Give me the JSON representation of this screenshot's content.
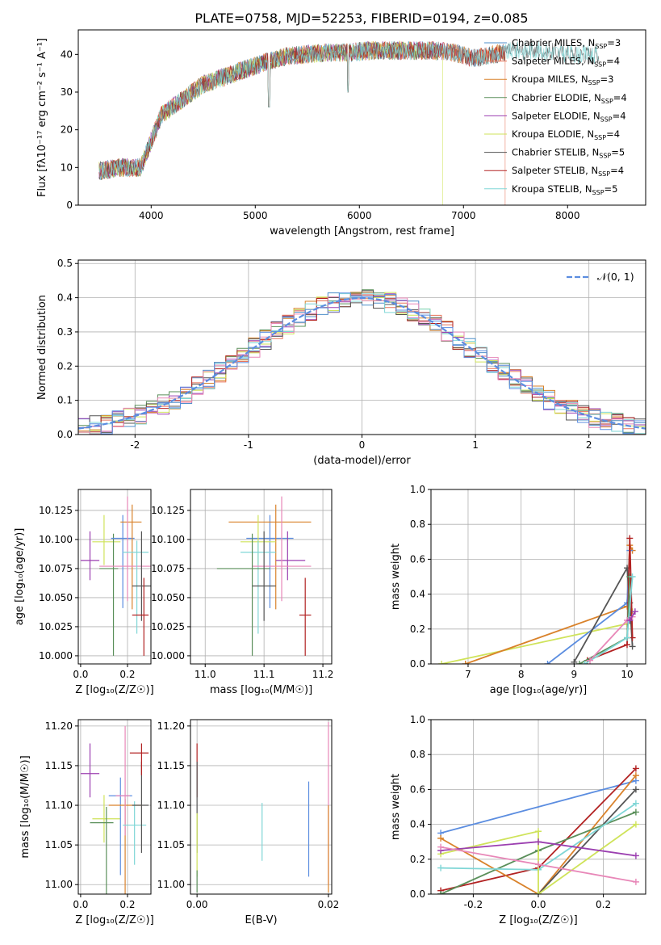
{
  "figure_title": "PLATE=0758, MJD=52253, FIBERID=0194, z=0.085",
  "colors": {
    "Chabrier MILES": "#4e8fc9",
    "Salpeter MILES": "#e8745a",
    "Kroupa MILES": "#d9822b",
    "Chabrier ELODIE": "#5a8f5a",
    "Salpeter ELODIE": "#9b3fb0",
    "Kroupa ELODIE": "#cfe35a",
    "Chabrier STELIB": "#555555",
    "Salpeter STELIB": "#b22222",
    "Kroupa STELIB": "#7fd6d6",
    "extra_blue": "#5b8de0",
    "extra_pink": "#e887b8",
    "normal_curve": "#5b8de0"
  },
  "chart_data": [
    {
      "id": "spectrum",
      "type": "line",
      "xlabel": "wavelength [Angstrom, rest frame]",
      "ylabel": "Flux [fλ10⁻¹⁷ erg cm⁻² s⁻¹ A⁻¹]",
      "xlim": [
        3300,
        8750
      ],
      "ylim": [
        0,
        46.5
      ],
      "xticks": [
        4000,
        5000,
        6000,
        7000,
        8000
      ],
      "yticks": [
        0,
        10,
        20,
        30,
        40
      ],
      "legend_position": "top-right",
      "legend": [
        {
          "name": "Chabrier MILES, N",
          "sub": "SSP",
          "val": "=3"
        },
        {
          "name": "Salpeter MILES, N",
          "sub": "SSP",
          "val": "=4"
        },
        {
          "name": "Kroupa MILES, N",
          "sub": "SSP",
          "val": "=3"
        },
        {
          "name": "Chabrier ELODIE, N",
          "sub": "SSP",
          "val": "=4"
        },
        {
          "name": "Salpeter ELODIE, N",
          "sub": "SSP",
          "val": "=4"
        },
        {
          "name": "Kroupa ELODIE, N",
          "sub": "SSP",
          "val": "=4"
        },
        {
          "name": "Chabrier STELIB, N",
          "sub": "SSP",
          "val": "=5"
        },
        {
          "name": "Salpeter STELIB, N",
          "sub": "SSP",
          "val": "=4"
        },
        {
          "name": "Kroupa STELIB, N",
          "sub": "SSP",
          "val": "=5"
        }
      ],
      "continuum": [
        [
          3500,
          9
        ],
        [
          3700,
          10
        ],
        [
          3900,
          10
        ],
        [
          4000,
          17
        ],
        [
          4100,
          24
        ],
        [
          4300,
          28
        ],
        [
          4500,
          32
        ],
        [
          4700,
          34
        ],
        [
          4900,
          36
        ],
        [
          5100,
          38
        ],
        [
          5300,
          39.5
        ],
        [
          5500,
          40
        ],
        [
          5700,
          40.5
        ],
        [
          5900,
          40.5
        ],
        [
          6100,
          41
        ],
        [
          6300,
          41
        ],
        [
          6500,
          41
        ],
        [
          6700,
          41
        ],
        [
          6900,
          40.5
        ],
        [
          7100,
          39
        ],
        [
          7300,
          40
        ],
        [
          7500,
          41
        ],
        [
          7700,
          41
        ],
        [
          7900,
          40.5
        ],
        [
          8100,
          40
        ],
        [
          8300,
          40
        ]
      ]
    },
    {
      "id": "residuals",
      "type": "line",
      "xlabel": "(data-model)/error",
      "ylabel": "Normed distribution",
      "xlim": [
        -2.5,
        2.5
      ],
      "ylim": [
        0,
        0.51
      ],
      "xticks": [
        -2,
        -1,
        0,
        1,
        2
      ],
      "yticks": [
        0.0,
        0.1,
        0.2,
        0.3,
        0.4,
        0.5
      ],
      "legend_position": "top-right",
      "normal_label": "𝒩(0, 1)",
      "grid": true
    },
    {
      "id": "age_vs_Z",
      "type": "scatter",
      "xlabel": "Z [log₁₀(Z/Z☉)]",
      "ylabel": "age  [log₁₀(age/yr)]",
      "xlim": [
        -0.01,
        0.3
      ],
      "ylim": [
        9.993,
        10.143
      ],
      "xticks": [
        0.0,
        0.2
      ],
      "yticks": [
        10.0,
        10.025,
        10.05,
        10.075,
        10.1,
        10.125
      ],
      "grid": true,
      "points": [
        {
          "x": 0.04,
          "y": 10.082,
          "xerr": [
            0.04,
            0.04
          ],
          "yerr": [
            0.017,
            0.025
          ],
          "color": "Salpeter ELODIE"
        },
        {
          "x": 0.1,
          "y": 10.098,
          "xerr": [
            0.05,
            0.07
          ],
          "yerr": [
            0.02,
            0.023
          ],
          "color": "Kroupa ELODIE"
        },
        {
          "x": 0.14,
          "y": 10.075,
          "xerr": [
            0.06,
            0.02
          ],
          "yerr": [
            0.075,
            0.03
          ],
          "color": "Chabrier ELODIE"
        },
        {
          "x": 0.18,
          "y": 10.101,
          "xerr": [
            0.05,
            0.05
          ],
          "yerr": [
            0.06,
            0.02
          ],
          "color": "extra_blue"
        },
        {
          "x": 0.22,
          "y": 10.115,
          "xerr": [
            0.05,
            0.04
          ],
          "yerr": [
            0.075,
            0.015
          ],
          "color": "Kroupa MILES"
        },
        {
          "x": 0.2,
          "y": 10.077,
          "xerr": [
            0.12,
            0.1
          ],
          "yerr": [
            0.03,
            0.06
          ],
          "color": "extra_pink"
        },
        {
          "x": 0.24,
          "y": 10.089,
          "xerr": [
            0.06,
            0.05
          ],
          "yerr": [
            0.07,
            0.01
          ],
          "color": "Kroupa STELIB"
        },
        {
          "x": 0.26,
          "y": 10.06,
          "xerr": [
            0.04,
            0.04
          ],
          "yerr": [
            0.03,
            0.047
          ],
          "color": "Chabrier STELIB"
        },
        {
          "x": 0.27,
          "y": 10.035,
          "xerr": [
            0.05,
            0.02
          ],
          "yerr": [
            0.035,
            0.032
          ],
          "color": "Salpeter STELIB"
        }
      ]
    },
    {
      "id": "age_vs_mass",
      "type": "scatter",
      "xlabel": "mass [log₁₀(M/M☉)]",
      "xlim": [
        10.975,
        11.215
      ],
      "ylim": [
        9.993,
        10.143
      ],
      "xticks": [
        11.0,
        11.1,
        11.2
      ],
      "yticks": [
        10.0,
        10.025,
        10.05,
        10.075,
        10.1,
        10.125
      ],
      "grid": true,
      "points": [
        {
          "x": 11.11,
          "y": 10.101,
          "xerr": [
            0.04,
            0.04
          ],
          "yerr": [
            0.06,
            0.02
          ],
          "color": "extra_blue"
        },
        {
          "x": 11.12,
          "y": 10.115,
          "xerr": [
            0.08,
            0.06
          ],
          "yerr": [
            0.075,
            0.015
          ],
          "color": "Kroupa MILES"
        },
        {
          "x": 11.09,
          "y": 10.098,
          "xerr": [
            0.03,
            0.03
          ],
          "yerr": [
            0.02,
            0.023
          ],
          "color": "Kroupa ELODIE"
        },
        {
          "x": 11.09,
          "y": 10.089,
          "xerr": [
            0.03,
            0.03
          ],
          "yerr": [
            0.07,
            0.01
          ],
          "color": "Kroupa STELIB"
        },
        {
          "x": 11.14,
          "y": 10.082,
          "xerr": [
            0.02,
            0.03
          ],
          "yerr": [
            0.017,
            0.025
          ],
          "color": "Salpeter ELODIE"
        },
        {
          "x": 11.13,
          "y": 10.077,
          "xerr": [
            0.05,
            0.05
          ],
          "yerr": [
            0.03,
            0.06
          ],
          "color": "extra_pink"
        },
        {
          "x": 11.08,
          "y": 10.075,
          "xerr": [
            0.06,
            0.03
          ],
          "yerr": [
            0.075,
            0.03
          ],
          "color": "Chabrier ELODIE"
        },
        {
          "x": 11.1,
          "y": 10.06,
          "xerr": [
            0.02,
            0.02
          ],
          "yerr": [
            0.03,
            0.047
          ],
          "color": "Chabrier STELIB"
        },
        {
          "x": 11.17,
          "y": 10.035,
          "xerr": [
            0.01,
            0.01
          ],
          "yerr": [
            0.035,
            0.032
          ],
          "color": "Salpeter STELIB"
        }
      ]
    },
    {
      "id": "mass_weight_vs_age",
      "type": "line",
      "xlabel": "age  [log₁₀(age/yr)]",
      "ylabel": "mass weight",
      "xlim": [
        6.3,
        10.35
      ],
      "ylim": [
        0,
        1.0
      ],
      "xticks": [
        7,
        8,
        9,
        10
      ],
      "yticks": [
        0.0,
        0.2,
        0.4,
        0.6,
        0.8,
        1.0
      ],
      "grid": true,
      "series": [
        {
          "color": "Kroupa ELODIE",
          "points": [
            [
              6.5,
              0.0
            ],
            [
              10.0,
              0.23
            ],
            [
              10.1,
              0.3
            ]
          ]
        },
        {
          "color": "Kroupa MILES",
          "points": [
            [
              6.95,
              0.0
            ],
            [
              10.0,
              0.33
            ],
            [
              10.05,
              0.68
            ],
            [
              10.1,
              0.65
            ]
          ]
        },
        {
          "color": "extra_blue",
          "points": [
            [
              8.5,
              0.0
            ],
            [
              10.0,
              0.35
            ],
            [
              10.05,
              0.65
            ]
          ]
        },
        {
          "color": "Chabrier STELIB",
          "points": [
            [
              9.0,
              0.01
            ],
            [
              10.0,
              0.55
            ],
            [
              10.05,
              0.35
            ],
            [
              10.1,
              0.1
            ]
          ]
        },
        {
          "color": "Salpeter STELIB",
          "points": [
            [
              9.25,
              0.02
            ],
            [
              10.0,
              0.11
            ],
            [
              10.05,
              0.72
            ],
            [
              10.1,
              0.15
            ]
          ]
        },
        {
          "color": "Chabrier ELODIE",
          "points": [
            [
              9.1,
              0.0
            ],
            [
              10.0,
              0.15
            ],
            [
              10.05,
              0.5
            ]
          ]
        },
        {
          "color": "Kroupa STELIB",
          "points": [
            [
              9.2,
              0.0
            ],
            [
              10.0,
              0.15
            ],
            [
              10.1,
              0.5
            ]
          ]
        },
        {
          "color": "extra_pink",
          "points": [
            [
              9.3,
              0.02
            ],
            [
              10.0,
              0.25
            ],
            [
              10.1,
              0.27
            ]
          ]
        },
        {
          "color": "Salpeter ELODIE",
          "points": [
            [
              10.05,
              0.25
            ],
            [
              10.15,
              0.3
            ]
          ]
        }
      ]
    },
    {
      "id": "mass_vs_Z",
      "type": "scatter",
      "xlabel": "Z [log₁₀(Z/Z☉)]",
      "ylabel": "mass [log₁₀(M/M☉)]",
      "xlim": [
        -0.01,
        0.3
      ],
      "ylim": [
        10.988,
        11.208
      ],
      "xticks": [
        0.0,
        0.2
      ],
      "yticks": [
        11.0,
        11.05,
        11.1,
        11.15,
        11.2
      ],
      "grid": true,
      "points": [
        {
          "x": 0.04,
          "y": 11.14,
          "xerr": [
            0.04,
            0.04
          ],
          "yerr": [
            0.03,
            0.038
          ],
          "color": "Salpeter ELODIE"
        },
        {
          "x": 0.1,
          "y": 11.083,
          "xerr": [
            0.05,
            0.07
          ],
          "yerr": [
            0.03,
            0.03
          ],
          "color": "Kroupa ELODIE"
        },
        {
          "x": 0.11,
          "y": 11.078,
          "xerr": [
            0.07,
            0.03
          ],
          "yerr": [
            0.09,
            0.02
          ],
          "color": "Chabrier ELODIE"
        },
        {
          "x": 0.17,
          "y": 11.112,
          "xerr": [
            0.05,
            0.05
          ],
          "yerr": [
            0.1,
            0.023
          ],
          "color": "extra_blue"
        },
        {
          "x": 0.19,
          "y": 11.1,
          "xerr": [
            0.07,
            0.07
          ],
          "yerr": [
            0.12,
            0.008
          ],
          "color": "Kroupa MILES"
        },
        {
          "x": 0.19,
          "y": 11.112,
          "xerr": [
            0.04,
            0.02
          ],
          "yerr": [
            0.05,
            0.088
          ],
          "color": "extra_pink"
        },
        {
          "x": 0.23,
          "y": 11.075,
          "xerr": [
            0.05,
            0.05
          ],
          "yerr": [
            0.05,
            0.03
          ],
          "color": "Kroupa STELIB"
        },
        {
          "x": 0.26,
          "y": 11.1,
          "xerr": [
            0.04,
            0.03
          ],
          "yerr": [
            0.06,
            0.055
          ],
          "color": "Chabrier STELIB"
        },
        {
          "x": 0.26,
          "y": 11.166,
          "xerr": [
            0.05,
            0.03
          ],
          "yerr": [
            0.028,
            0.012
          ],
          "color": "Salpeter STELIB"
        }
      ]
    },
    {
      "id": "mass_vs_ebv",
      "type": "scatter",
      "xlabel": "E(B-V)",
      "xlim": [
        -0.001,
        0.0205
      ],
      "ylim": [
        10.988,
        11.208
      ],
      "xticks": [
        0.0,
        0.02
      ],
      "tick_labels": [
        "0.00",
        "0.02"
      ],
      "yticks": [
        11.0,
        11.05,
        11.1,
        11.15,
        11.2
      ],
      "grid": true,
      "points": [
        {
          "x": 0.0,
          "y": 11.14,
          "yerr": [
            0.03,
            0.038
          ],
          "color": "Salpeter STELIB"
        },
        {
          "x": 0.0,
          "y": 11.1,
          "yerr": [
            0.06,
            0.055
          ],
          "color": "Chabrier STELIB"
        },
        {
          "x": 0.0,
          "y": 11.06,
          "yerr": [
            0.05,
            0.03
          ],
          "color": "Kroupa ELODIE"
        },
        {
          "x": 0.0,
          "y": 11.0,
          "yerr": [
            0.01,
            0.018
          ],
          "color": "Chabrier ELODIE"
        },
        {
          "x": 0.0099,
          "y": 11.065,
          "yerr": [
            0.035,
            0.038
          ],
          "color": "Kroupa STELIB"
        },
        {
          "x": 0.017,
          "y": 11.07,
          "yerr": [
            0.06,
            0.06
          ],
          "color": "extra_blue"
        },
        {
          "x": 0.02,
          "y": 11.1,
          "yerr": [
            0.1,
            0.105
          ],
          "color": "extra_pink"
        },
        {
          "x": 0.02,
          "y": 11.05,
          "yerr": [
            0.06,
            0.05
          ],
          "color": "Kroupa MILES"
        }
      ]
    },
    {
      "id": "mass_weight_vs_Z",
      "type": "line",
      "xlabel": "Z [log₁₀(Z/Z☉)]",
      "ylabel": "mass weight",
      "xlim": [
        -0.33,
        0.33
      ],
      "ylim": [
        0,
        1.0
      ],
      "xticks": [
        -0.2,
        0.0,
        0.2
      ],
      "yticks": [
        0.0,
        0.2,
        0.4,
        0.6,
        0.8,
        1.0
      ],
      "grid": true,
      "series": [
        {
          "color": "extra_blue",
          "points": [
            [
              -0.3,
              0.35
            ],
            [
              0.3,
              0.65
            ]
          ]
        },
        {
          "color": "Salpeter STELIB",
          "points": [
            [
              -0.3,
              0.02
            ],
            [
              0.0,
              0.15
            ],
            [
              0.3,
              0.72
            ]
          ]
        },
        {
          "color": "Kroupa MILES",
          "points": [
            [
              -0.3,
              0.32
            ],
            [
              0.0,
              0.0
            ],
            [
              0.3,
              0.68
            ]
          ]
        },
        {
          "color": "Chabrier STELIB",
          "points": [
            [
              -0.3,
              0.0
            ],
            [
              0.0,
              0.0
            ],
            [
              0.3,
              0.6
            ]
          ]
        },
        {
          "color": "Chabrier ELODIE",
          "points": [
            [
              -0.3,
              0.0
            ],
            [
              0.0,
              0.25
            ],
            [
              0.3,
              0.47
            ]
          ]
        },
        {
          "color": "Kroupa STELIB",
          "points": [
            [
              -0.3,
              0.15
            ],
            [
              0.0,
              0.14
            ],
            [
              0.3,
              0.52
            ]
          ]
        },
        {
          "color": "Kroupa ELODIE",
          "points": [
            [
              -0.3,
              0.23
            ],
            [
              0.0,
              0.36
            ],
            [
              0.0,
              0.0
            ],
            [
              0.3,
              0.4
            ]
          ]
        },
        {
          "color": "Salpeter ELODIE",
          "points": [
            [
              -0.3,
              0.25
            ],
            [
              0.0,
              0.3
            ],
            [
              0.3,
              0.22
            ]
          ]
        },
        {
          "color": "extra_pink",
          "points": [
            [
              -0.3,
              0.27
            ],
            [
              0.0,
              0.17
            ],
            [
              0.3,
              0.07
            ]
          ]
        }
      ]
    }
  ]
}
